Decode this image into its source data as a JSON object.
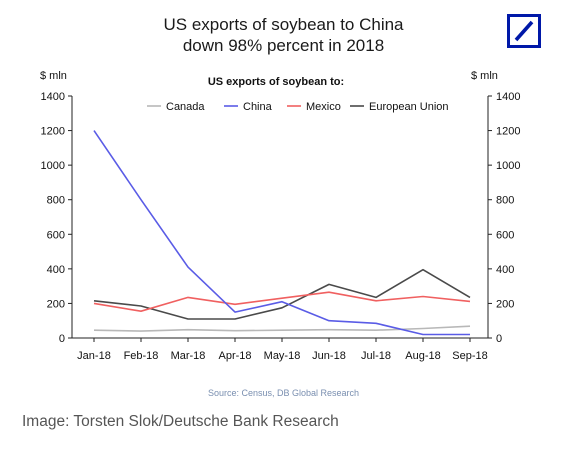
{
  "header": {
    "title_line1": "US exports of soybean to China",
    "title_line2": "down 98% percent in 2018"
  },
  "logo": {
    "icon": "deutsche-bank-logo",
    "color": "#0018a8"
  },
  "chart_data": {
    "type": "line",
    "subtitle": "US exports of  soybean to:",
    "y_unit_left": "$ mln",
    "y_unit_right": "$ mln",
    "categories": [
      "Jan-18",
      "Feb-18",
      "Mar-18",
      "Apr-18",
      "May-18",
      "Jun-18",
      "Jul-18",
      "Aug-18",
      "Sep-18"
    ],
    "ylim": [
      0,
      1400
    ],
    "yticks": [
      0,
      200,
      400,
      600,
      800,
      1000,
      1200,
      1400
    ],
    "legend_position": "top",
    "grid": false,
    "series": [
      {
        "name": "Canada",
        "color": "#b8b8b8",
        "values": [
          45,
          40,
          48,
          42,
          45,
          48,
          45,
          55,
          68
        ]
      },
      {
        "name": "China",
        "color": "#5a5ce6",
        "values": [
          1200,
          800,
          410,
          150,
          210,
          100,
          85,
          20,
          20
        ]
      },
      {
        "name": "Mexico",
        "color": "#f06060",
        "values": [
          200,
          155,
          235,
          195,
          230,
          265,
          215,
          240,
          212
        ]
      },
      {
        "name": "European Union",
        "color": "#4a4a4a",
        "values": [
          215,
          185,
          110,
          110,
          175,
          310,
          235,
          395,
          235
        ]
      }
    ]
  },
  "footer": {
    "source": "Source: Census, DB Global Research",
    "caption": "Image: Torsten Slok/Deutsche Bank Research"
  }
}
